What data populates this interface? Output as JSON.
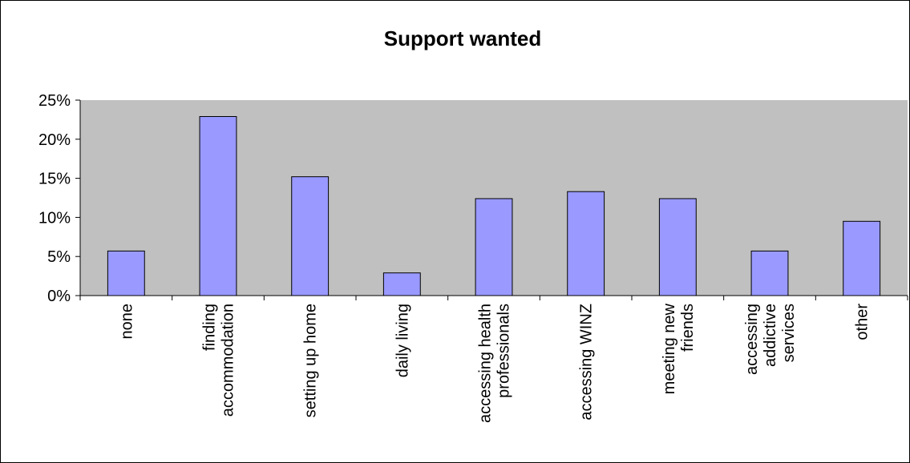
{
  "chart_data": {
    "type": "bar",
    "title": "Support wanted",
    "xlabel": "",
    "ylabel": "",
    "categories": [
      [
        "none"
      ],
      [
        "finding",
        "accommodation"
      ],
      [
        "setting up home"
      ],
      [
        "daily living"
      ],
      [
        "accessing health",
        "professionals"
      ],
      [
        "accessing WINZ"
      ],
      [
        "meeting new",
        "friends"
      ],
      [
        "accessing",
        "addictive",
        "services"
      ],
      [
        "other"
      ]
    ],
    "values": [
      5.7,
      22.9,
      15.2,
      2.9,
      12.4,
      13.3,
      12.4,
      5.7,
      9.5
    ],
    "ylim": [
      0,
      25
    ],
    "yticks": [
      0,
      5,
      10,
      15,
      20,
      25
    ],
    "ytick_labels": [
      "0%",
      "5%",
      "10%",
      "15%",
      "20%",
      "25%"
    ],
    "grid": false,
    "legend": "none",
    "colors": {
      "bar_fill": "#9999ff",
      "bar_stroke": "#000000",
      "plot_bg": "#c0c0c0",
      "axis": "#000000"
    }
  }
}
